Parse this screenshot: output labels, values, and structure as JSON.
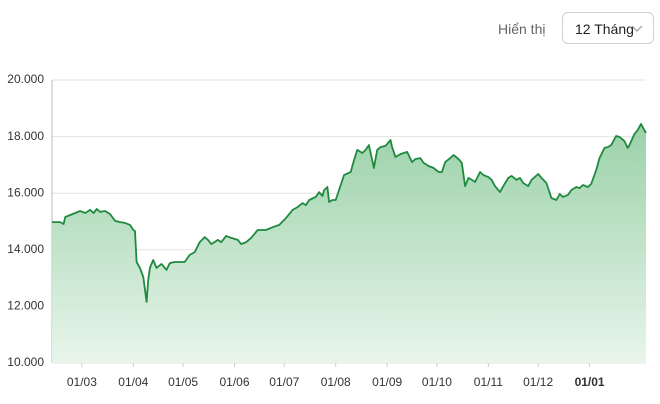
{
  "controls": {
    "label": "Hiển thị",
    "select": "12 Tháng"
  },
  "chart_data": {
    "type": "area",
    "color": "#1f8a3e",
    "grid": true,
    "ylim": [
      10000,
      20000
    ],
    "yticks": [
      {
        "value": 10000,
        "label": "10.000"
      },
      {
        "value": 12000,
        "label": "12.000"
      },
      {
        "value": 14000,
        "label": "14.000"
      },
      {
        "value": 16000,
        "label": "16.000"
      },
      {
        "value": 18000,
        "label": "18.000"
      },
      {
        "value": 20000,
        "label": "20.000"
      }
    ],
    "xlim": [
      0,
      358
    ],
    "xticks": [
      {
        "value": 18,
        "label": "01/03"
      },
      {
        "value": 49,
        "label": "01/04"
      },
      {
        "value": 79,
        "label": "01/05"
      },
      {
        "value": 110,
        "label": "01/06"
      },
      {
        "value": 140,
        "label": "01/07"
      },
      {
        "value": 171,
        "label": "01/08"
      },
      {
        "value": 202,
        "label": "01/09"
      },
      {
        "value": 232,
        "label": "01/10"
      },
      {
        "value": 263,
        "label": "01/11"
      },
      {
        "value": 293,
        "label": "01/12"
      },
      {
        "value": 324,
        "label": "01/01"
      }
    ],
    "x": [
      0,
      5,
      7,
      8,
      14,
      17,
      20,
      23,
      25,
      27,
      29,
      32,
      35,
      38,
      41,
      44,
      47,
      49,
      50,
      51,
      53,
      55,
      57,
      58,
      59,
      61,
      63,
      66,
      69,
      71,
      74,
      80,
      83,
      86,
      89,
      92,
      94,
      96,
      100,
      102,
      105,
      108,
      112,
      114,
      117,
      120,
      124,
      129,
      133,
      137,
      141,
      145,
      148,
      151,
      153,
      155,
      159,
      161,
      163,
      164,
      166,
      167,
      169,
      171,
      173,
      176,
      180,
      182,
      184,
      187,
      189,
      191,
      193,
      194,
      196,
      198,
      201,
      204,
      205,
      207,
      210,
      212,
      214,
      217,
      219,
      222,
      224,
      227,
      230,
      233,
      235,
      237,
      240,
      242,
      245,
      247,
      249,
      251,
      253,
      255,
      258,
      260,
      263,
      265,
      267,
      270,
      272,
      275,
      277,
      280,
      282,
      284,
      287,
      289,
      293,
      295,
      298,
      301,
      304,
      306,
      308,
      311,
      313,
      316,
      318,
      320,
      323,
      325,
      328,
      330,
      333,
      335,
      337,
      340,
      342,
      345,
      347,
      348,
      351,
      353,
      355,
      357,
      358
    ],
    "values": [
      14980,
      14980,
      14910,
      15160,
      15300,
      15370,
      15300,
      15410,
      15300,
      15440,
      15340,
      15370,
      15260,
      15020,
      14980,
      14950,
      14880,
      14700,
      14660,
      13570,
      13360,
      13040,
      12160,
      12930,
      13360,
      13640,
      13360,
      13500,
      13290,
      13530,
      13570,
      13570,
      13820,
      13920,
      14270,
      14450,
      14350,
      14200,
      14350,
      14270,
      14490,
      14420,
      14350,
      14200,
      14270,
      14420,
      14700,
      14700,
      14800,
      14880,
      15120,
      15410,
      15510,
      15650,
      15580,
      15760,
      15870,
      16040,
      15900,
      16110,
      16220,
      15690,
      15760,
      15760,
      16110,
      16640,
      16750,
      17170,
      17530,
      17420,
      17530,
      17700,
      17170,
      16890,
      17530,
      17630,
      17670,
      17880,
      17630,
      17280,
      17380,
      17420,
      17460,
      17100,
      17210,
      17240,
      17070,
      16960,
      16890,
      16750,
      16750,
      17100,
      17240,
      17350,
      17210,
      17070,
      16250,
      16540,
      16470,
      16400,
      16750,
      16640,
      16570,
      16470,
      16250,
      16040,
      16250,
      16540,
      16610,
      16470,
      16540,
      16360,
      16250,
      16470,
      16680,
      16540,
      16360,
      15830,
      15760,
      15970,
      15870,
      15940,
      16110,
      16220,
      16180,
      16290,
      16220,
      16330,
      16820,
      17240,
      17600,
      17630,
      17700,
      18020,
      17990,
      17840,
      17600,
      17700,
      18090,
      18230,
      18450,
      18230,
      18130
    ]
  }
}
